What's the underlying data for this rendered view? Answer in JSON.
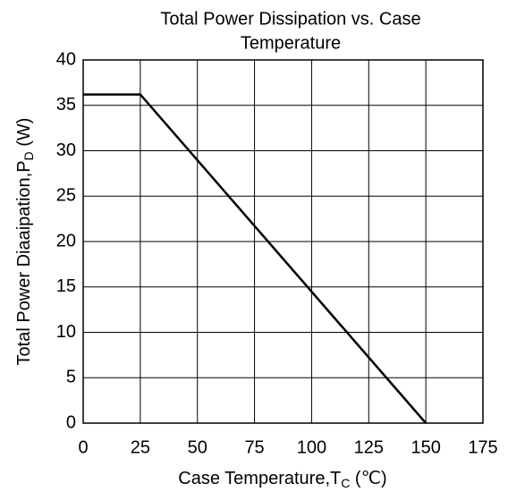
{
  "chart_data": {
    "type": "line",
    "title": [
      "Total Power Dissipation vs. Case",
      "Temperature"
    ],
    "xlabel": {
      "text": "Case Temperature,T",
      "sub": "C",
      "suffix": " (℃)"
    },
    "ylabel": {
      "text": "Total Power Diaaipation,P",
      "sub": "D",
      "suffix": " (W)"
    },
    "x": [
      0,
      25,
      150
    ],
    "series": [
      {
        "color": "#000000",
        "values": [
          36.2,
          36.2,
          0
        ]
      }
    ],
    "xlim": [
      0,
      175
    ],
    "xticks": [
      0,
      25,
      50,
      75,
      100,
      125,
      150,
      175
    ],
    "ylim": [
      0,
      40
    ],
    "yticks": [
      0,
      5,
      10,
      15,
      20,
      25,
      30,
      35,
      40
    ],
    "grid": true
  }
}
